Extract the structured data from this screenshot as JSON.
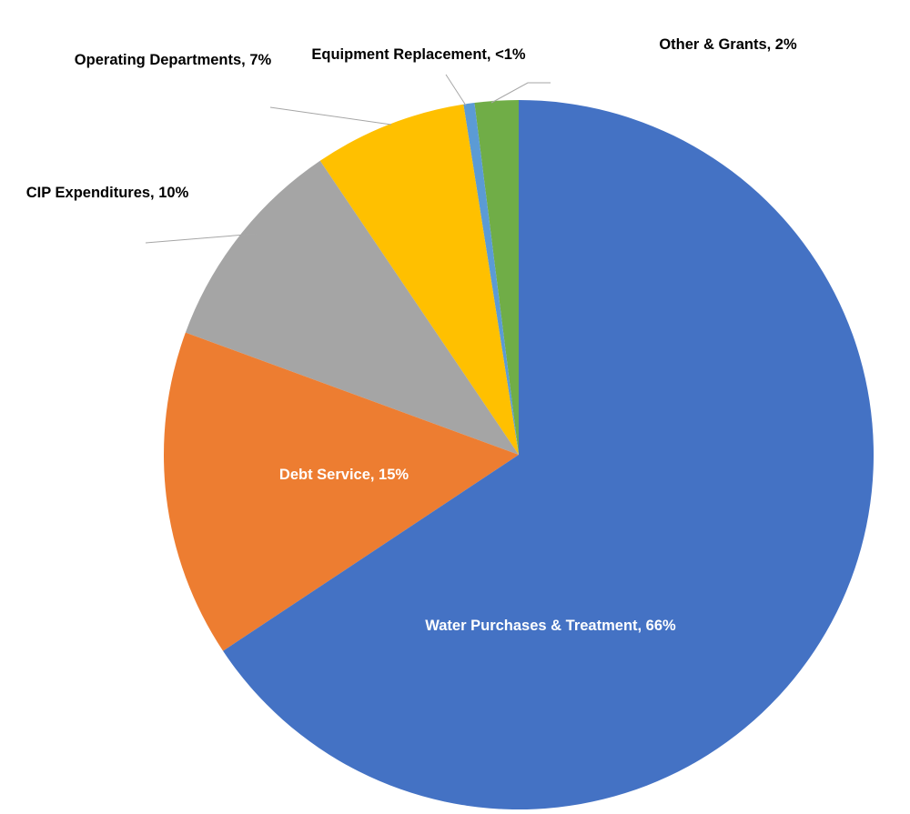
{
  "chart_data": {
    "type": "pie",
    "labels": [
      "Water Purchases & Treatment, 66%",
      "Debt Service, 15%",
      "CIP Expenditures, 10%",
      "Operating Departments, 7%",
      "Equipment Replacement, <1%",
      "Other & Grants, 2%"
    ],
    "values": [
      66,
      15,
      10,
      7,
      0.5,
      2
    ],
    "colors": [
      "#4472c4",
      "#ed7d31",
      "#a5a5a5",
      "#ffc000",
      "#5b9bd5",
      "#70ad47"
    ]
  }
}
